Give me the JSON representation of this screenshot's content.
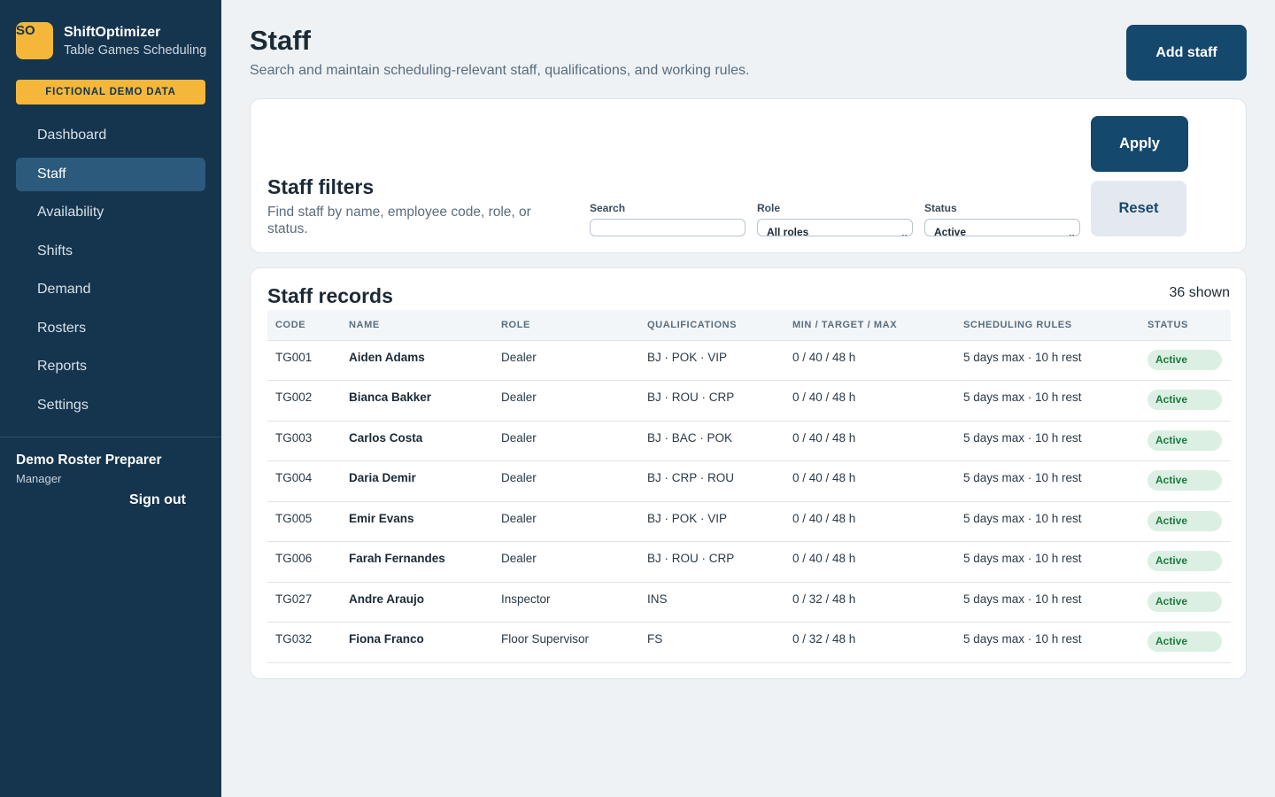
{
  "app": {
    "logo_text": "SO",
    "name": "ShiftOptimizer",
    "subtitle": "Table Games Scheduling",
    "demo_badge": "FICTIONAL DEMO DATA"
  },
  "nav": [
    {
      "label": "Dashboard",
      "active": false
    },
    {
      "label": "Staff",
      "active": true
    },
    {
      "label": "Availability",
      "active": false
    },
    {
      "label": "Shifts",
      "active": false
    },
    {
      "label": "Demand",
      "active": false
    },
    {
      "label": "Rosters",
      "active": false
    },
    {
      "label": "Reports",
      "active": false
    },
    {
      "label": "Settings",
      "active": false
    }
  ],
  "user": {
    "name": "Demo Roster Preparer",
    "role": "Manager",
    "signout_label": "Sign out"
  },
  "header": {
    "title": "Staff",
    "subtitle": "Search and maintain scheduling-relevant staff, qualifications, and working rules.",
    "add_label": "Add staff"
  },
  "filters": {
    "title": "Staff filters",
    "subtitle": "Find staff by name, employee code, role, or status.",
    "search_label": "Search",
    "search_value": "",
    "role_label": "Role",
    "role_value": "All roles",
    "status_label": "Status",
    "status_value": "Active",
    "apply_label": "Apply",
    "reset_label": "Reset"
  },
  "records": {
    "title": "Staff records",
    "count": "36 shown",
    "columns": [
      "CODE",
      "NAME",
      "ROLE",
      "QUALIFICATIONS",
      "MIN / TARGET / MAX",
      "SCHEDULING RULES",
      "STATUS"
    ],
    "rows": [
      {
        "code": "TG001",
        "name": "Aiden Adams",
        "role": "Dealer",
        "quals": "BJ · POK · VIP",
        "hours": "0 / 40 / 48 h",
        "rules": "5 days max · 10 h rest",
        "status": "Active"
      },
      {
        "code": "TG002",
        "name": "Bianca Bakker",
        "role": "Dealer",
        "quals": "BJ · ROU · CRP",
        "hours": "0 / 40 / 48 h",
        "rules": "5 days max · 10 h rest",
        "status": "Active"
      },
      {
        "code": "TG003",
        "name": "Carlos Costa",
        "role": "Dealer",
        "quals": "BJ · BAC · POK",
        "hours": "0 / 40 / 48 h",
        "rules": "5 days max · 10 h rest",
        "status": "Active"
      },
      {
        "code": "TG004",
        "name": "Daria Demir",
        "role": "Dealer",
        "quals": "BJ · CRP · ROU",
        "hours": "0 / 40 / 48 h",
        "rules": "5 days max · 10 h rest",
        "status": "Active"
      },
      {
        "code": "TG005",
        "name": "Emir Evans",
        "role": "Dealer",
        "quals": "BJ · POK · VIP",
        "hours": "0 / 40 / 48 h",
        "rules": "5 days max · 10 h rest",
        "status": "Active"
      },
      {
        "code": "TG006",
        "name": "Farah Fernandes",
        "role": "Dealer",
        "quals": "BJ · ROU · CRP",
        "hours": "0 / 40 / 48 h",
        "rules": "5 days max · 10 h rest",
        "status": "Active"
      },
      {
        "code": "TG027",
        "name": "Andre Araujo",
        "role": "Inspector",
        "quals": "INS",
        "hours": "0 / 32 / 48 h",
        "rules": "5 days max · 10 h rest",
        "status": "Active"
      },
      {
        "code": "TG032",
        "name": "Fiona Franco",
        "role": "Floor Supervisor",
        "quals": "FS",
        "hours": "0 / 32 / 48 h",
        "rules": "5 days max · 10 h rest",
        "status": "Active"
      }
    ]
  },
  "colors": {
    "sidebar": "#15344d",
    "accent": "#f4b73a",
    "primary_button": "#15486d",
    "active_status_bg": "#dcefe3",
    "active_status_text": "#1d7a3e"
  }
}
